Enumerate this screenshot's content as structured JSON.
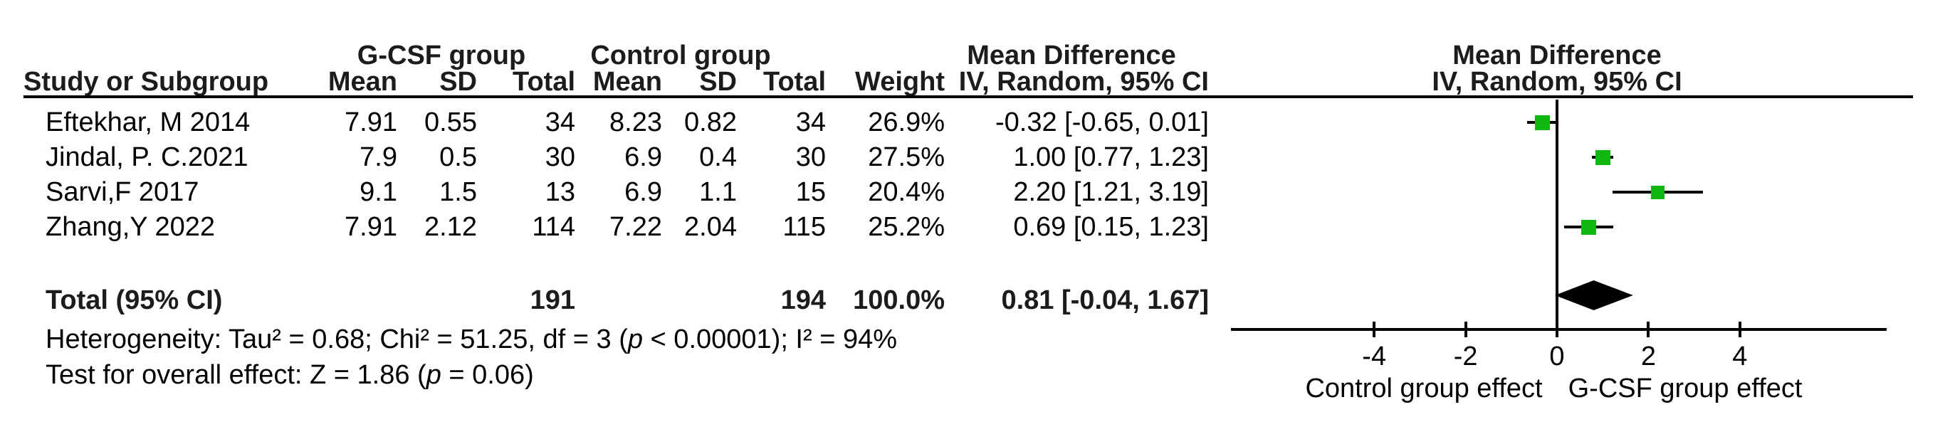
{
  "table": {
    "header": {
      "group1": "G-CSF group",
      "group2": "Control group",
      "effect_title": "Mean Difference",
      "effect_subtitle": "IV, Random, 95% CI",
      "plot_title": "Mean Difference",
      "plot_subtitle": "IV, Random, 95% CI",
      "study": "Study or Subgroup",
      "mean": "Mean",
      "sd": "SD",
      "total": "Total",
      "weight": "Weight"
    },
    "studies": [
      {
        "name": "Eftekhar, M 2014",
        "mean1": "7.91",
        "sd1": "0.55",
        "total1": "34",
        "mean2": "8.23",
        "sd2": "0.82",
        "total2": "34",
        "weight": "26.9%",
        "ci_text": "-0.32 [-0.65, 0.01]"
      },
      {
        "name": "Jindal, P. C.2021",
        "mean1": "7.9",
        "sd1": "0.5",
        "total1": "30",
        "mean2": "6.9",
        "sd2": "0.4",
        "total2": "30",
        "weight": "27.5%",
        "ci_text": "1.00 [0.77, 1.23]"
      },
      {
        "name": "Sarvi,F 2017",
        "mean1": "9.1",
        "sd1": "1.5",
        "total1": "13",
        "mean2": "6.9",
        "sd2": "1.1",
        "total2": "15",
        "weight": "20.4%",
        "ci_text": "2.20 [1.21, 3.19]"
      },
      {
        "name": "Zhang,Y 2022",
        "mean1": "7.91",
        "sd1": "2.12",
        "total1": "114",
        "mean2": "7.22",
        "sd2": "2.04",
        "total2": "115",
        "weight": "25.2%",
        "ci_text": "0.69 [0.15, 1.23]"
      }
    ],
    "total_row": {
      "label": "Total (95% CI)",
      "total1": "191",
      "total2": "194",
      "weight": "100.0%",
      "ci_text": "0.81 [-0.04, 1.67]"
    },
    "heterogeneity": "Heterogeneity: Tau² = 0.68; Chi² = 51.25, df = 3 (p < 0.00001); I² = 94%",
    "overall_effect": "Test for overall effect: Z = 1.86 (p = 0.06)"
  },
  "chart_data": {
    "type": "forest",
    "title": "Mean Difference",
    "model": "IV, Random, 95% CI",
    "x_ticks": [
      -4,
      -2,
      0,
      2,
      4
    ],
    "xlim": [
      -7.1,
      7.2
    ],
    "axis_label_left": "Control group effect",
    "axis_label_right": "G-CSF group effect",
    "studies": [
      {
        "name": "Eftekhar, M 2014",
        "md": -0.32,
        "ci_low": -0.65,
        "ci_high": 0.01,
        "weight_pct": 26.9
      },
      {
        "name": "Jindal, P. C.2021",
        "md": 1.0,
        "ci_low": 0.77,
        "ci_high": 1.23,
        "weight_pct": 27.5
      },
      {
        "name": "Sarvi,F 2017",
        "md": 2.2,
        "ci_low": 1.21,
        "ci_high": 3.19,
        "weight_pct": 20.4
      },
      {
        "name": "Zhang,Y 2022",
        "md": 0.69,
        "ci_low": 0.15,
        "ci_high": 1.23,
        "weight_pct": 25.2
      }
    ],
    "total": {
      "label": "Total (95% CI)",
      "md": 0.81,
      "ci_low": -0.04,
      "ci_high": 1.67
    },
    "marker_color": "#10b710",
    "line_color": "#000000"
  }
}
